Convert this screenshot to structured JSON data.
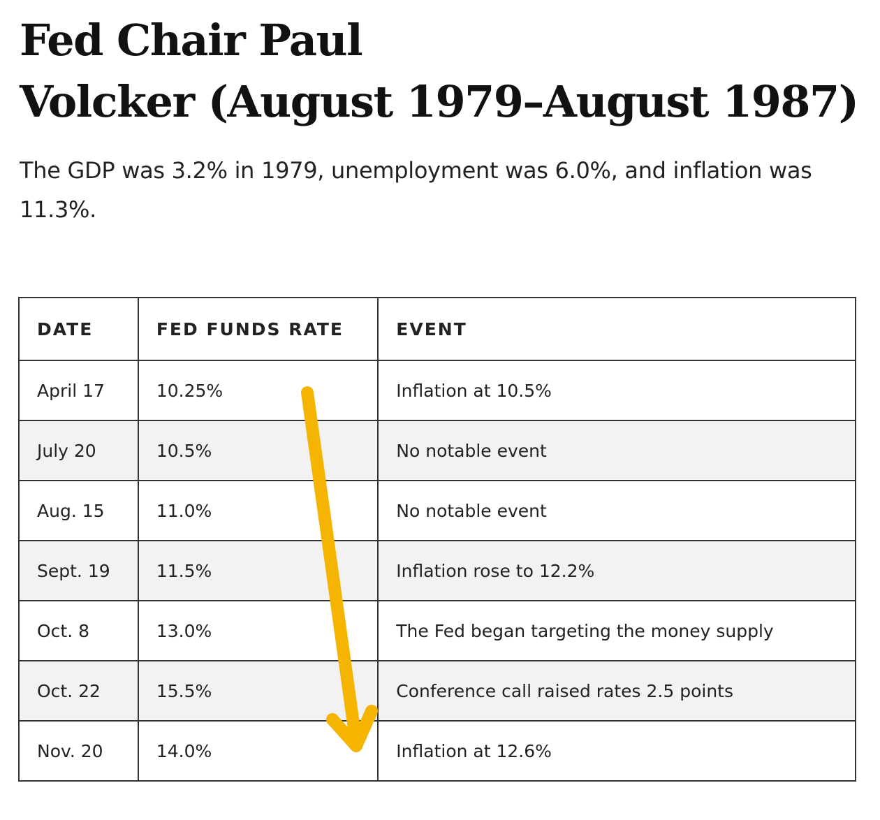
{
  "heading": {
    "line1": "Fed Chair Paul",
    "line2": "Volcker (August 1979–August 1987)"
  },
  "intro": "The GDP was 3.2% in 1979, unemployment was 6.0%, and inflation was 11.3%.",
  "table": {
    "headers": [
      "DATE",
      "FED FUNDS RATE",
      "EVENT"
    ],
    "rows": [
      {
        "date": "April 17",
        "rate": "10.25%",
        "event": "Inflation at 10.5%"
      },
      {
        "date": "July 20",
        "rate": "10.5%",
        "event": "No notable event"
      },
      {
        "date": "Aug. 15",
        "rate": "11.0%",
        "event": "No notable event"
      },
      {
        "date": "Sept. 19",
        "rate": "11.5%",
        "event": "Inflation rose to 12.2%"
      },
      {
        "date": "Oct. 8",
        "rate": "13.0%",
        "event": "The Fed began targeting the money supply"
      },
      {
        "date": "Oct. 22",
        "rate": "15.5%",
        "event": "Conference call raised rates 2.5 points"
      },
      {
        "date": "Nov. 20",
        "rate": "14.0%",
        "event": "Inflation at 12.6%"
      }
    ]
  },
  "colors": {
    "arrow": "#f5b400",
    "row_shade": "#f2f2f2",
    "border": "#333333"
  },
  "annotation": {
    "icon": "down-arrow-icon"
  }
}
